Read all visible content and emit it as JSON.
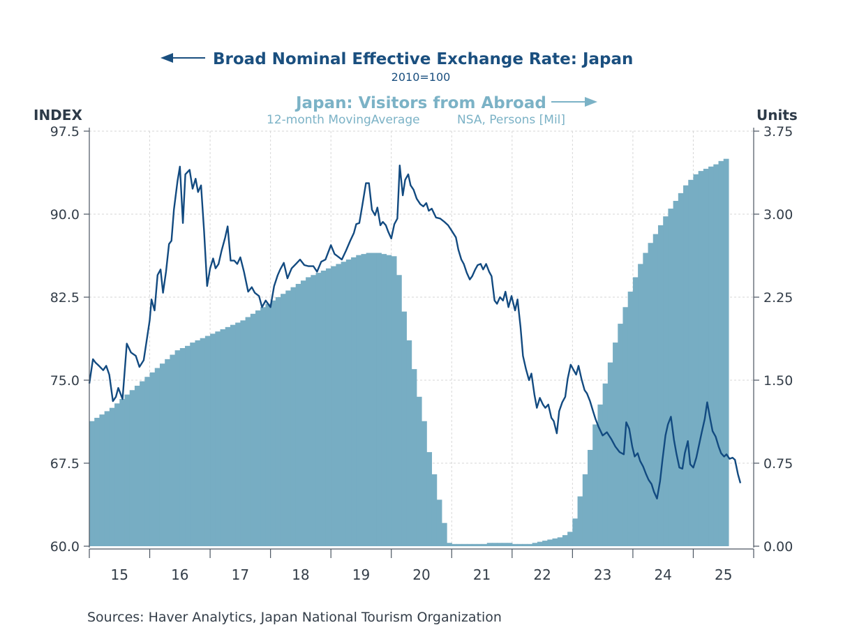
{
  "chart_data": {
    "type": "line+bar (dual axis)",
    "title_left_series": "Broad Nominal Effective Exchange Rate: Japan",
    "subtitle_left_series": "2010=100",
    "title_right_series": "Japan: Visitors from Abroad",
    "subtitle_right_series_a": "12-month MovingAverage",
    "subtitle_right_series_b": "NSA, Persons [Mil]",
    "left_axis_label": "INDEX",
    "right_axis_label": "Units",
    "left_ylim": [
      60.0,
      97.5
    ],
    "right_ylim": [
      0.0,
      3.75
    ],
    "left_ticks": [
      "97.5",
      "90.0",
      "82.5",
      "75.0",
      "67.5",
      "60.0"
    ],
    "right_ticks": [
      "3.75",
      "3.00",
      "2.25",
      "1.50",
      "0.75",
      "0.00"
    ],
    "x_range": [
      2015.0,
      2026.0
    ],
    "x_ticks": [
      "15",
      "16",
      "17",
      "18",
      "19",
      "20",
      "21",
      "22",
      "23",
      "24",
      "25"
    ],
    "grid": true,
    "source": "Sources:  Haver Analytics, Japan National Tourism Organization",
    "colors": {
      "line": "#124a80",
      "bars": "#77adc3",
      "title_left": "#1a4f7f",
      "title_right": "#7bb2c6",
      "axis": "#4a5460",
      "text": "#333d48"
    },
    "series": [
      {
        "name": "Broad Nominal Effective Exchange Rate: Japan",
        "axis": "left",
        "kind": "line",
        "points": [
          [
            2015.0,
            74.7
          ],
          [
            2015.06,
            76.9
          ],
          [
            2015.1,
            76.6
          ],
          [
            2015.16,
            76.3
          ],
          [
            2015.23,
            75.9
          ],
          [
            2015.28,
            76.3
          ],
          [
            2015.33,
            75.5
          ],
          [
            2015.39,
            73.1
          ],
          [
            2015.44,
            73.5
          ],
          [
            2015.48,
            74.3
          ],
          [
            2015.55,
            73.3
          ],
          [
            2015.62,
            78.3
          ],
          [
            2015.69,
            77.5
          ],
          [
            2015.77,
            77.2
          ],
          [
            2015.83,
            76.2
          ],
          [
            2015.9,
            76.8
          ],
          [
            2015.95,
            78.6
          ],
          [
            2016.0,
            80.4
          ],
          [
            2016.03,
            82.3
          ],
          [
            2016.08,
            81.3
          ],
          [
            2016.13,
            84.5
          ],
          [
            2016.18,
            85.0
          ],
          [
            2016.22,
            82.9
          ],
          [
            2016.27,
            84.8
          ],
          [
            2016.32,
            87.3
          ],
          [
            2016.36,
            87.6
          ],
          [
            2016.4,
            90.4
          ],
          [
            2016.46,
            93.0
          ],
          [
            2016.5,
            94.3
          ],
          [
            2016.55,
            89.2
          ],
          [
            2016.59,
            93.6
          ],
          [
            2016.66,
            94.0
          ],
          [
            2016.71,
            92.3
          ],
          [
            2016.76,
            93.2
          ],
          [
            2016.8,
            92.0
          ],
          [
            2016.85,
            92.6
          ],
          [
            2016.9,
            88.5
          ],
          [
            2016.95,
            83.5
          ],
          [
            2017.0,
            85.1
          ],
          [
            2017.05,
            86.0
          ],
          [
            2017.09,
            85.1
          ],
          [
            2017.14,
            85.5
          ],
          [
            2017.19,
            86.7
          ],
          [
            2017.25,
            87.9
          ],
          [
            2017.29,
            88.9
          ],
          [
            2017.34,
            85.8
          ],
          [
            2017.4,
            85.8
          ],
          [
            2017.45,
            85.5
          ],
          [
            2017.5,
            86.1
          ],
          [
            2017.56,
            84.8
          ],
          [
            2017.63,
            83.0
          ],
          [
            2017.69,
            83.4
          ],
          [
            2017.74,
            82.9
          ],
          [
            2017.81,
            82.6
          ],
          [
            2017.86,
            81.6
          ],
          [
            2017.92,
            82.2
          ],
          [
            2018.0,
            81.6
          ],
          [
            2018.06,
            83.5
          ],
          [
            2018.12,
            84.5
          ],
          [
            2018.16,
            85.0
          ],
          [
            2018.22,
            85.6
          ],
          [
            2018.28,
            84.2
          ],
          [
            2018.35,
            85.1
          ],
          [
            2018.42,
            85.5
          ],
          [
            2018.49,
            85.9
          ],
          [
            2018.56,
            85.4
          ],
          [
            2018.63,
            85.3
          ],
          [
            2018.71,
            85.3
          ],
          [
            2018.77,
            84.8
          ],
          [
            2018.84,
            85.7
          ],
          [
            2018.91,
            85.9
          ],
          [
            2019.0,
            87.2
          ],
          [
            2019.06,
            86.4
          ],
          [
            2019.11,
            86.2
          ],
          [
            2019.18,
            85.9
          ],
          [
            2019.25,
            86.7
          ],
          [
            2019.32,
            87.6
          ],
          [
            2019.38,
            88.3
          ],
          [
            2019.42,
            89.1
          ],
          [
            2019.47,
            89.2
          ],
          [
            2019.52,
            90.8
          ],
          [
            2019.58,
            92.8
          ],
          [
            2019.63,
            92.8
          ],
          [
            2019.68,
            90.4
          ],
          [
            2019.73,
            89.9
          ],
          [
            2019.77,
            90.6
          ],
          [
            2019.82,
            89.0
          ],
          [
            2019.86,
            89.3
          ],
          [
            2019.91,
            89.0
          ],
          [
            2019.95,
            88.4
          ],
          [
            2020.0,
            87.8
          ],
          [
            2020.05,
            89.1
          ],
          [
            2020.1,
            89.6
          ],
          [
            2020.14,
            94.4
          ],
          [
            2020.19,
            91.7
          ],
          [
            2020.23,
            93.1
          ],
          [
            2020.28,
            93.6
          ],
          [
            2020.32,
            92.6
          ],
          [
            2020.37,
            92.2
          ],
          [
            2020.42,
            91.4
          ],
          [
            2020.48,
            90.9
          ],
          [
            2020.53,
            90.7
          ],
          [
            2020.58,
            91.0
          ],
          [
            2020.62,
            90.3
          ],
          [
            2020.67,
            90.5
          ],
          [
            2020.74,
            89.7
          ],
          [
            2020.81,
            89.6
          ],
          [
            2020.88,
            89.3
          ],
          [
            2020.94,
            89.0
          ],
          [
            2021.0,
            88.5
          ],
          [
            2021.07,
            87.9
          ],
          [
            2021.11,
            86.8
          ],
          [
            2021.16,
            85.9
          ],
          [
            2021.2,
            85.5
          ],
          [
            2021.25,
            84.7
          ],
          [
            2021.3,
            84.1
          ],
          [
            2021.34,
            84.4
          ],
          [
            2021.39,
            85.0
          ],
          [
            2021.43,
            85.4
          ],
          [
            2021.48,
            85.5
          ],
          [
            2021.52,
            85.0
          ],
          [
            2021.57,
            85.5
          ],
          [
            2021.62,
            84.8
          ],
          [
            2021.66,
            84.4
          ],
          [
            2021.71,
            82.2
          ],
          [
            2021.75,
            81.9
          ],
          [
            2021.8,
            82.5
          ],
          [
            2021.85,
            82.2
          ],
          [
            2021.89,
            83.0
          ],
          [
            2021.94,
            81.6
          ],
          [
            2021.99,
            82.6
          ],
          [
            2022.05,
            81.3
          ],
          [
            2022.09,
            82.3
          ],
          [
            2022.14,
            79.8
          ],
          [
            2022.18,
            77.2
          ],
          [
            2022.23,
            76.0
          ],
          [
            2022.28,
            75.0
          ],
          [
            2022.32,
            75.6
          ],
          [
            2022.37,
            73.7
          ],
          [
            2022.41,
            72.5
          ],
          [
            2022.46,
            73.4
          ],
          [
            2022.51,
            72.8
          ],
          [
            2022.55,
            72.5
          ],
          [
            2022.6,
            72.8
          ],
          [
            2022.65,
            71.6
          ],
          [
            2022.69,
            71.3
          ],
          [
            2022.74,
            70.2
          ],
          [
            2022.78,
            72.2
          ],
          [
            2022.83,
            73.0
          ],
          [
            2022.88,
            73.5
          ],
          [
            2022.92,
            75.1
          ],
          [
            2022.97,
            76.4
          ],
          [
            2023.01,
            76.0
          ],
          [
            2023.06,
            75.5
          ],
          [
            2023.1,
            76.3
          ],
          [
            2023.15,
            75.1
          ],
          [
            2023.2,
            74.1
          ],
          [
            2023.24,
            73.8
          ],
          [
            2023.29,
            73.1
          ],
          [
            2023.34,
            72.2
          ],
          [
            2023.38,
            71.5
          ],
          [
            2023.43,
            70.8
          ],
          [
            2023.5,
            70.0
          ],
          [
            2023.57,
            70.3
          ],
          [
            2023.64,
            69.7
          ],
          [
            2023.71,
            69.0
          ],
          [
            2023.78,
            68.5
          ],
          [
            2023.85,
            68.3
          ],
          [
            2023.89,
            71.2
          ],
          [
            2023.94,
            70.6
          ],
          [
            2023.99,
            69.0
          ],
          [
            2024.03,
            68.1
          ],
          [
            2024.08,
            68.4
          ],
          [
            2024.12,
            67.7
          ],
          [
            2024.17,
            67.2
          ],
          [
            2024.22,
            66.5
          ],
          [
            2024.26,
            66.0
          ],
          [
            2024.31,
            65.6
          ],
          [
            2024.35,
            64.9
          ],
          [
            2024.4,
            64.3
          ],
          [
            2024.45,
            65.9
          ],
          [
            2024.49,
            67.8
          ],
          [
            2024.54,
            70.0
          ],
          [
            2024.58,
            71.0
          ],
          [
            2024.63,
            71.7
          ],
          [
            2024.68,
            69.6
          ],
          [
            2024.72,
            68.4
          ],
          [
            2024.77,
            67.1
          ],
          [
            2024.82,
            67.0
          ],
          [
            2024.86,
            68.4
          ],
          [
            2024.91,
            69.5
          ],
          [
            2024.95,
            67.4
          ],
          [
            2025.0,
            67.1
          ],
          [
            2025.05,
            68.0
          ],
          [
            2025.09,
            69.0
          ],
          [
            2025.14,
            70.3
          ],
          [
            2025.19,
            71.5
          ],
          [
            2025.23,
            73.0
          ],
          [
            2025.28,
            71.5
          ],
          [
            2025.32,
            70.4
          ],
          [
            2025.37,
            69.9
          ],
          [
            2025.42,
            69.0
          ],
          [
            2025.46,
            68.4
          ],
          [
            2025.51,
            68.1
          ],
          [
            2025.55,
            68.3
          ],
          [
            2025.6,
            67.9
          ],
          [
            2025.65,
            68.0
          ],
          [
            2025.69,
            67.8
          ],
          [
            2025.74,
            66.5
          ],
          [
            2025.78,
            65.7
          ]
        ]
      },
      {
        "name": "Japan: Visitors from Abroad (12-month Moving Average, NSA, Persons Mil)",
        "axis": "right",
        "kind": "bar",
        "start": "2015-01",
        "frequency": "monthly",
        "values": [
          1.13,
          1.16,
          1.19,
          1.22,
          1.25,
          1.29,
          1.33,
          1.37,
          1.41,
          1.45,
          1.49,
          1.53,
          1.57,
          1.61,
          1.65,
          1.69,
          1.73,
          1.77,
          1.79,
          1.81,
          1.84,
          1.86,
          1.88,
          1.9,
          1.92,
          1.94,
          1.96,
          1.98,
          2.0,
          2.02,
          2.04,
          2.07,
          2.1,
          2.13,
          2.16,
          2.19,
          2.22,
          2.25,
          2.28,
          2.31,
          2.34,
          2.37,
          2.4,
          2.43,
          2.45,
          2.47,
          2.49,
          2.51,
          2.53,
          2.55,
          2.57,
          2.59,
          2.61,
          2.63,
          2.64,
          2.65,
          2.65,
          2.65,
          2.64,
          2.63,
          2.62,
          2.45,
          2.12,
          1.86,
          1.6,
          1.35,
          1.13,
          0.85,
          0.65,
          0.42,
          0.21,
          0.03,
          0.02,
          0.02,
          0.02,
          0.02,
          0.02,
          0.02,
          0.02,
          0.03,
          0.03,
          0.03,
          0.03,
          0.03,
          0.02,
          0.02,
          0.02,
          0.02,
          0.03,
          0.04,
          0.05,
          0.06,
          0.07,
          0.08,
          0.1,
          0.13,
          0.25,
          0.45,
          0.65,
          0.87,
          1.1,
          1.28,
          1.47,
          1.66,
          1.84,
          2.01,
          2.16,
          2.3,
          2.43,
          2.55,
          2.65,
          2.74,
          2.82,
          2.9,
          2.98,
          3.05,
          3.12,
          3.19,
          3.26,
          3.31,
          3.36,
          3.39,
          3.41,
          3.43,
          3.45,
          3.48,
          3.5
        ]
      }
    ]
  }
}
